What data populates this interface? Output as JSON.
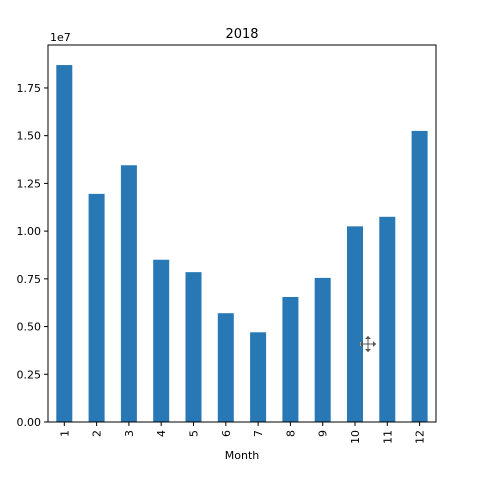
{
  "chart_data": {
    "type": "bar",
    "title": "2018",
    "xlabel": "Month",
    "ylabel": "",
    "offset_label": "1e7",
    "categories": [
      "1",
      "2",
      "3",
      "4",
      "5",
      "6",
      "7",
      "8",
      "9",
      "10",
      "11",
      "12"
    ],
    "values": [
      18700000,
      11950000,
      13450000,
      8500000,
      7850000,
      5700000,
      4700000,
      6550000,
      7550000,
      10250000,
      10750000,
      15250000
    ],
    "ylim": [
      0,
      19750000
    ],
    "yticks": [
      0,
      2500000,
      5000000,
      7500000,
      10000000,
      12500000,
      15000000,
      17500000
    ],
    "ytick_labels": [
      "0.00",
      "0.25",
      "0.50",
      "0.75",
      "1.00",
      "1.25",
      "1.50",
      "1.75"
    ],
    "bar_color": "#2878b5",
    "grid": false,
    "legend": "none"
  },
  "cursor_icon": "move-crosshair-icon"
}
